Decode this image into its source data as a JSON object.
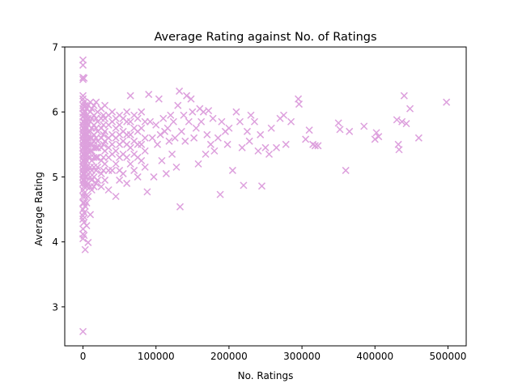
{
  "chart_data": {
    "type": "scatter",
    "title": "Average Rating against No. of Ratings",
    "xlabel": "No. Ratings",
    "ylabel": "Average Rating",
    "xlim": [
      -25000,
      525000
    ],
    "ylim": [
      2.4,
      7.0
    ],
    "xticks": [
      0,
      100000,
      200000,
      300000,
      400000,
      500000
    ],
    "xtick_labels": [
      "0",
      "100000",
      "200000",
      "300000",
      "400000",
      "500000"
    ],
    "yticks": [
      3,
      4,
      5,
      6,
      7
    ],
    "ytick_labels": [
      "3",
      "4",
      "5",
      "6",
      "7"
    ],
    "grid": false,
    "marker": "x",
    "color": "#dda0dd",
    "series": [
      {
        "x": [
          0,
          0,
          0,
          0,
          0,
          0,
          0,
          0,
          0,
          0,
          0,
          0,
          0,
          0,
          0,
          0,
          0,
          0,
          0,
          0,
          0,
          0,
          0,
          0,
          0,
          0,
          0,
          0,
          0,
          0,
          0,
          0,
          0,
          0,
          0,
          0,
          0,
          0,
          0,
          0,
          1500,
          1500,
          1500,
          1500,
          1500,
          1500,
          1500,
          1500,
          1500,
          1500,
          1500,
          1500,
          1500,
          1500,
          1500,
          1500,
          1500,
          1500,
          1500,
          1500,
          3000,
          3000,
          3000,
          3000,
          3000,
          3000,
          3000,
          3000,
          3000,
          3000,
          3000,
          3000,
          3000,
          3000,
          3000,
          3000,
          5000,
          5000,
          5000,
          5000,
          5000,
          5000,
          5000,
          5000,
          5000,
          5000,
          5000,
          5000,
          5000,
          5000,
          7000,
          7000,
          7000,
          7000,
          7000,
          7000,
          7000,
          7000,
          7000,
          7000,
          7000,
          7000,
          10000,
          10000,
          10000,
          10000,
          10000,
          10000,
          10000,
          10000,
          10000,
          10000,
          10000,
          10000,
          12000,
          12000,
          12000,
          12000,
          12000,
          12000,
          12000,
          12000,
          12000,
          12000,
          15000,
          15000,
          15000,
          15000,
          15000,
          15000,
          15000,
          15000,
          15000,
          15000,
          18000,
          18000,
          18000,
          18000,
          18000,
          18000,
          18000,
          18000,
          20000,
          20000,
          20000,
          20000,
          20000,
          20000,
          20000,
          20000,
          25000,
          25000,
          25000,
          25000,
          25000,
          25000,
          25000,
          25000,
          28000,
          28000,
          28000,
          28000,
          28000,
          28000,
          30000,
          30000,
          30000,
          30000,
          30000,
          30000,
          30000,
          35000,
          35000,
          35000,
          35000,
          35000,
          35000,
          35000,
          40000,
          40000,
          40000,
          40000,
          40000,
          40000,
          45000,
          45000,
          45000,
          45000,
          45000,
          45000,
          50000,
          50000,
          50000,
          50000,
          50000,
          50000,
          50000,
          55000,
          55000,
          55000,
          55000,
          55000,
          60000,
          60000,
          60000,
          60000,
          60000,
          60000,
          65000,
          65000,
          65000,
          65000,
          65000,
          70000,
          70000,
          70000,
          70000,
          70000,
          75000,
          75000,
          75000,
          75000,
          75000,
          80000,
          80000,
          80000,
          80000,
          85000,
          85000,
          85000,
          85000,
          88000,
          90000,
          92000,
          95000,
          97000,
          100000,
          102000,
          104000,
          106000,
          108000,
          110000,
          112000,
          114000,
          116000,
          118000,
          120000,
          122000,
          124000,
          126000,
          128000,
          130000,
          132000,
          133000,
          135000,
          138000,
          140000,
          142000,
          145000,
          148000,
          150000,
          152000,
          155000,
          158000,
          160000,
          162000,
          165000,
          168000,
          170000,
          172000,
          175000,
          178000,
          180000,
          185000,
          188000,
          190000,
          195000,
          198000,
          200000,
          205000,
          210000,
          215000,
          218000,
          220000,
          225000,
          228000,
          230000,
          235000,
          240000,
          243000,
          245000,
          250000,
          255000,
          258000,
          265000,
          270000,
          275000,
          278000,
          285000,
          295000,
          296000,
          305000,
          310000,
          315000,
          318000,
          322000,
          350000,
          352000,
          360000,
          365000,
          385000,
          400000,
          402000,
          405000,
          430000,
          432000,
          433000,
          437000,
          440000,
          443000,
          448000,
          460000,
          498000
        ],
        "y": [
          2.62,
          6.8,
          6.72,
          6.53,
          6.5,
          6.25,
          6.2,
          6.1,
          6.05,
          5.98,
          5.92,
          5.85,
          5.8,
          5.75,
          5.7,
          5.65,
          5.6,
          5.55,
          5.5,
          5.45,
          5.4,
          5.35,
          5.3,
          5.25,
          5.2,
          5.15,
          5.1,
          5.05,
          5.0,
          4.95,
          4.9,
          4.8,
          4.7,
          4.6,
          4.5,
          4.4,
          4.35,
          4.2,
          4.12,
          4.05,
          6.52,
          6.15,
          6.0,
          5.95,
          5.85,
          5.75,
          5.65,
          5.55,
          5.45,
          5.35,
          5.25,
          5.15,
          5.05,
          4.95,
          4.85,
          4.75,
          4.6,
          4.45,
          4.3,
          4.1,
          6.1,
          6.0,
          5.9,
          5.8,
          5.7,
          5.6,
          5.5,
          5.4,
          5.3,
          5.2,
          5.1,
          5.0,
          4.9,
          4.7,
          4.55,
          3.88,
          6.05,
          5.95,
          5.85,
          5.75,
          5.65,
          5.55,
          5.45,
          5.35,
          5.25,
          5.15,
          5.0,
          4.85,
          4.6,
          4.25,
          6.1,
          5.9,
          5.8,
          5.7,
          5.6,
          5.5,
          5.4,
          5.3,
          5.1,
          4.9,
          4.7,
          3.99,
          6.15,
          6.0,
          5.85,
          5.7,
          5.6,
          5.5,
          5.4,
          5.3,
          5.15,
          5.0,
          4.85,
          4.42,
          6.05,
          5.9,
          5.75,
          5.6,
          5.5,
          5.4,
          5.25,
          5.1,
          4.95,
          4.8,
          6.1,
          5.95,
          5.8,
          5.65,
          5.55,
          5.45,
          5.3,
          5.15,
          5.0,
          4.85,
          6.15,
          5.9,
          5.75,
          5.6,
          5.45,
          5.3,
          5.1,
          4.9,
          6.0,
          5.85,
          5.7,
          5.55,
          5.45,
          5.3,
          5.15,
          4.95,
          6.05,
          5.9,
          5.75,
          5.6,
          5.45,
          5.25,
          5.05,
          4.85,
          5.95,
          5.8,
          5.65,
          5.5,
          5.3,
          5.1,
          6.1,
          5.9,
          5.7,
          5.55,
          5.4,
          5.2,
          4.95,
          5.95,
          5.8,
          5.6,
          5.45,
          5.3,
          5.1,
          4.8,
          6.0,
          5.85,
          5.65,
          5.5,
          5.35,
          5.1,
          5.9,
          5.75,
          5.6,
          5.4,
          5.2,
          4.7,
          5.95,
          5.8,
          5.65,
          5.5,
          5.3,
          5.1,
          4.95,
          5.9,
          5.7,
          5.55,
          5.35,
          5.05,
          6.0,
          5.85,
          5.65,
          5.5,
          5.3,
          4.9,
          6.25,
          5.85,
          5.65,
          5.45,
          5.2,
          5.95,
          5.75,
          5.55,
          5.35,
          5.1,
          5.9,
          5.7,
          5.5,
          5.3,
          5.0,
          6.0,
          5.75,
          5.5,
          5.25,
          5.85,
          5.6,
          5.4,
          5.15,
          4.77,
          6.27,
          5.85,
          5.6,
          5.0,
          5.8,
          5.5,
          6.2,
          5.65,
          5.25,
          5.9,
          5.7,
          5.05,
          5.75,
          5.55,
          5.95,
          5.35,
          5.85,
          5.6,
          5.15,
          6.1,
          6.32,
          4.54,
          5.7,
          5.95,
          5.55,
          6.25,
          5.85,
          6.2,
          6.0,
          5.6,
          5.75,
          5.2,
          6.05,
          5.85,
          6.0,
          5.35,
          5.65,
          6.02,
          5.5,
          5.9,
          5.4,
          5.6,
          4.73,
          5.85,
          5.7,
          5.5,
          5.75,
          5.1,
          6.0,
          5.85,
          5.45,
          4.87,
          5.7,
          5.55,
          5.95,
          5.85,
          5.4,
          5.65,
          4.86,
          5.45,
          5.35,
          5.75,
          5.45,
          5.9,
          5.95,
          5.5,
          5.85,
          6.2,
          6.12,
          5.58,
          5.72,
          5.5,
          5.48,
          5.48,
          5.83,
          5.73,
          5.1,
          5.7,
          5.78,
          5.58,
          5.68,
          5.62,
          5.88,
          5.5,
          5.42,
          5.85,
          6.25,
          5.82,
          6.05,
          5.6,
          6.15
        ]
      }
    ]
  }
}
